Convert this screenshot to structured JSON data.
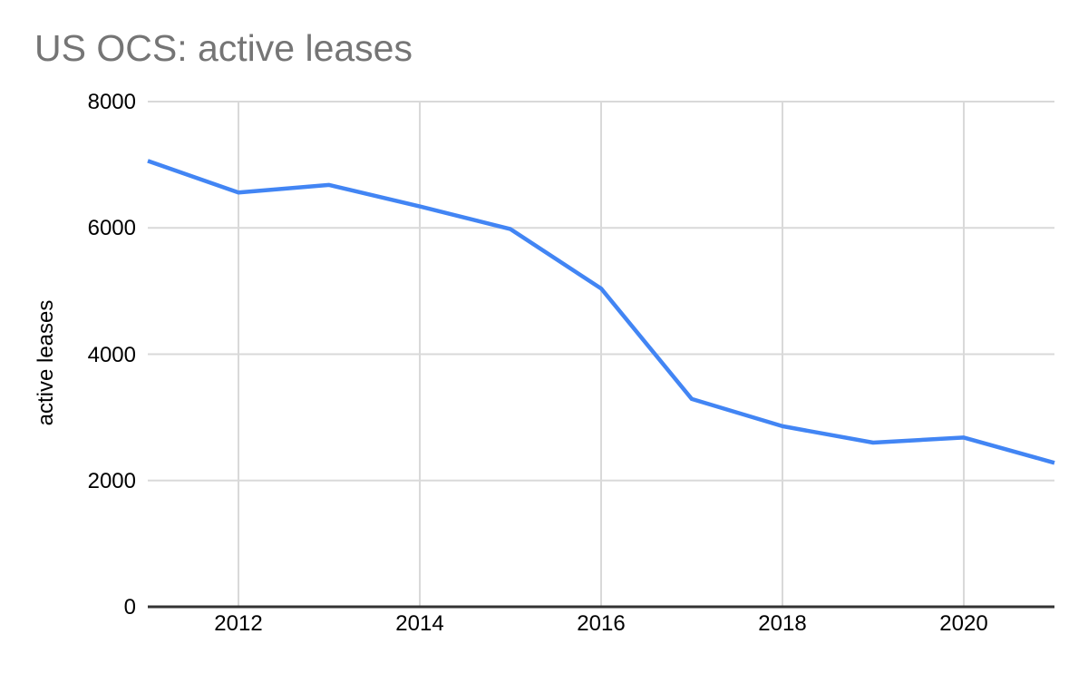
{
  "chart_data": {
    "type": "line",
    "title": "US OCS: active leases",
    "xlabel": "",
    "ylabel": "active leases",
    "x": [
      2011,
      2012,
      2013,
      2014,
      2015,
      2016,
      2017,
      2018,
      2019,
      2020,
      2021
    ],
    "series": [
      {
        "name": "active leases",
        "values": [
          7060,
          6560,
          6680,
          6340,
          5980,
          5040,
          3290,
          2860,
          2600,
          2680,
          2280
        ]
      }
    ],
    "xlim": [
      2011,
      2021
    ],
    "ylim": [
      0,
      8000
    ],
    "xticks": [
      2012,
      2014,
      2016,
      2018,
      2020
    ],
    "yticks": [
      0,
      2000,
      4000,
      6000,
      8000
    ],
    "grid": true,
    "legend_position": "none"
  },
  "style": {
    "background_color": "#ffffff",
    "title_color": "#757575",
    "tick_label_color": "#000000",
    "axis_title_color": "#000000",
    "gridline_color": "#d9d9d9",
    "axis_line_color": "#333333",
    "series_color": "#4285f4"
  }
}
